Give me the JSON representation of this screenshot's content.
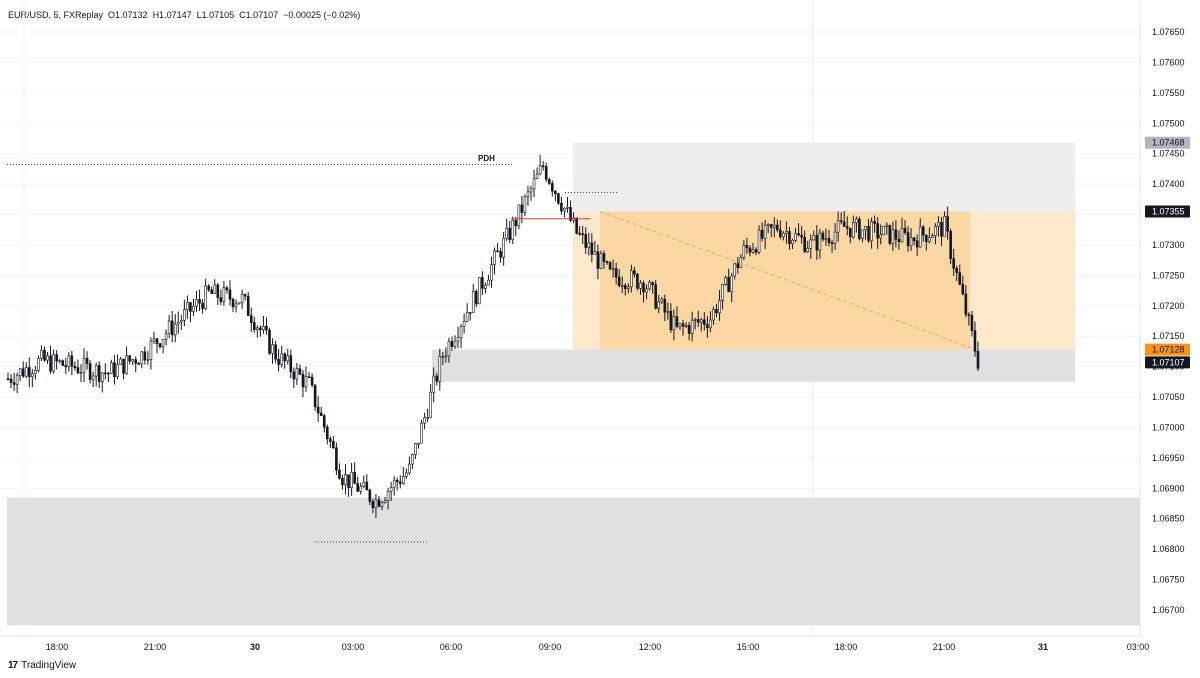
{
  "header": {
    "symbol_line": "EUR/USD, 5, FXReplay  O1.07132  H1.07147  L1.07105  C1.07107  −0.00025 (−0.02%)"
  },
  "footer": {
    "brand": "TradingView",
    "logo": "17"
  },
  "annotations": {
    "pdh": "PDH"
  },
  "price_axis": {
    "ticks": [
      "1.07650",
      "1.07600",
      "1.07550",
      "1.07500",
      "1.07450",
      "1.07400",
      "1.07350",
      "1.07300",
      "1.07250",
      "1.07200",
      "1.07150",
      "1.07100",
      "1.07050",
      "1.07000",
      "1.06950",
      "1.06900",
      "1.06850",
      "1.06800",
      "1.06750",
      "1.06700"
    ],
    "labels": [
      {
        "text": "1.07468",
        "bg": "#b2b5be",
        "fg": "#131722"
      },
      {
        "text": "1.07355",
        "bg": "#131722",
        "fg": "#ffffff"
      },
      {
        "text": "1.07128",
        "bg": "#f7931a",
        "fg": "#131722"
      },
      {
        "text": "1.07107",
        "bg": "#131722",
        "fg": "#ffffff"
      }
    ]
  },
  "time_axis": {
    "ticks": [
      {
        "text": "18:00",
        "bold": false
      },
      {
        "text": "21:00",
        "bold": false
      },
      {
        "text": "30",
        "bold": true
      },
      {
        "text": "03:00",
        "bold": false
      },
      {
        "text": "06:00",
        "bold": false
      },
      {
        "text": "09:00",
        "bold": false
      },
      {
        "text": "12:00",
        "bold": false
      },
      {
        "text": "15:00",
        "bold": false
      },
      {
        "text": "18:00",
        "bold": false
      },
      {
        "text": "21:00",
        "bold": false
      },
      {
        "text": "31",
        "bold": true
      },
      {
        "text": "03:00",
        "bold": false
      }
    ]
  },
  "colors": {
    "candle": "#131722",
    "zone_gray": "#e0e0e3",
    "long_fill": "#fbd7a4",
    "long_light": "#fde8cc",
    "stop_fill": "#eeeef1",
    "grid": "#f0f3fa"
  },
  "chart_data": {
    "type": "candlestick",
    "symbol": "EUR/USD",
    "timeframe": "5",
    "ylim": [
      1.0667,
      1.0768
    ],
    "x": [
      "17:00",
      "18:00",
      "19:00",
      "20:00",
      "21:00",
      "22:00",
      "23:00",
      "00:00",
      "01:00",
      "02:00",
      "03:00",
      "04:00",
      "05:00",
      "06:00",
      "07:00",
      "08:00",
      "09:00",
      "10:00",
      "11:00",
      "12:00",
      "13:00",
      "14:00",
      "15:00",
      "16:00",
      "17:00",
      "18:00",
      "19:00",
      "20:00",
      "21:00",
      "21:45"
    ],
    "series": [
      {
        "values": [
          1.0708,
          1.0711,
          1.071,
          1.0709,
          1.0712,
          1.0717,
          1.0722,
          1.0721,
          1.0712,
          1.0707,
          1.0692,
          1.0688,
          1.0693,
          1.0712,
          1.0722,
          1.0732,
          1.0743,
          1.0732,
          1.0725,
          1.0724,
          1.0716,
          1.0718,
          1.0729,
          1.0733,
          1.073,
          1.0733,
          1.0732,
          1.0731,
          1.0733,
          1.0711
        ]
      }
    ],
    "zones": [
      {
        "kind": "support",
        "from": 1.06675,
        "to": 1.06885
      },
      {
        "kind": "demand",
        "from": 1.07075,
        "to": 1.07128
      },
      {
        "kind": "position-stop",
        "from": 1.07355,
        "to": 1.07468
      },
      {
        "kind": "position-target",
        "from": 1.07128,
        "to": 1.07355
      }
    ],
    "levels": [
      {
        "name": "PDH",
        "price": 1.07432
      },
      {
        "price": 1.06812
      },
      {
        "price": 1.07386
      },
      {
        "price": 1.07343
      }
    ],
    "last_price": 1.07107
  }
}
